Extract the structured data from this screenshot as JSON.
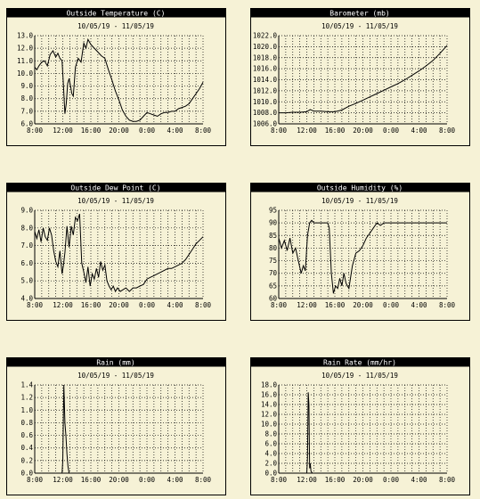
{
  "date_range": "10/05/19 - 11/05/19",
  "colors": {
    "background": "#f6f2d6",
    "ink": "#000000"
  },
  "chart_data": [
    {
      "id": "outside-temperature",
      "type": "line",
      "title": "Outside Temperature (C)",
      "subtitle": "10/05/19 - 11/05/19",
      "x_ticks": [
        "8:00",
        "12:00",
        "16:00",
        "20:00",
        "0:00",
        "4:00",
        "8:00"
      ],
      "y_ticks": [
        "6.0",
        "7.0",
        "8.0",
        "9.0",
        "10.0",
        "11.0",
        "12.0",
        "13.0"
      ],
      "ylim": [
        6,
        13
      ],
      "grid": true,
      "series": [
        {
          "x": [
            0,
            0.3,
            0.6,
            1,
            1.4,
            1.8,
            2.2,
            2.6,
            3,
            3.3,
            3.6,
            3.9,
            4.1,
            4.3,
            4.5,
            4.7,
            4.9,
            5.1,
            5.3,
            5.5,
            5.8,
            6.2,
            6.6,
            7,
            7.3,
            7.6,
            8,
            8.5,
            9,
            9.5,
            10,
            10.5,
            11,
            11.5,
            12,
            12.5,
            13,
            13.5,
            14,
            14.5,
            15,
            15.5,
            16,
            16.5,
            17,
            17.5,
            18,
            18.5,
            19,
            19.5,
            20,
            20.5,
            21,
            21.5,
            22,
            22.5,
            23,
            23.5,
            24
          ],
          "y": [
            10.5,
            10.3,
            10.6,
            10.9,
            11.0,
            10.6,
            11.5,
            11.8,
            11.3,
            11.6,
            11.2,
            11.0,
            9.0,
            6.8,
            7.6,
            9.2,
            9.6,
            9.0,
            8.4,
            8.2,
            10.5,
            11.2,
            10.9,
            12.4,
            12.0,
            12.7,
            12.3,
            12.0,
            11.7,
            11.4,
            11.2,
            10.3,
            9.5,
            8.6,
            7.9,
            7.1,
            6.6,
            6.3,
            6.2,
            6.2,
            6.3,
            6.6,
            6.9,
            6.8,
            6.7,
            6.6,
            6.8,
            6.9,
            6.9,
            7.0,
            7.0,
            7.2,
            7.3,
            7.4,
            7.6,
            8.0,
            8.4,
            8.8,
            9.3
          ]
        }
      ]
    },
    {
      "id": "barometer",
      "type": "line",
      "title": "Barometer (mb)",
      "subtitle": "10/05/19 - 11/05/19",
      "x_ticks": [
        "8:00",
        "12:00",
        "16:00",
        "20:00",
        "0:00",
        "4:00",
        "8:00"
      ],
      "y_ticks": [
        "1006.0",
        "1008.0",
        "1010.0",
        "1012.0",
        "1014.0",
        "1016.0",
        "1018.0",
        "1020.0",
        "1022.0"
      ],
      "ylim": [
        1006,
        1022
      ],
      "grid": true,
      "series": [
        {
          "x": [
            0,
            1,
            2,
            3,
            4,
            4.5,
            5,
            6,
            7,
            8,
            9,
            10,
            11,
            12,
            13,
            14,
            15,
            16,
            17,
            18,
            19,
            20,
            21,
            22,
            23,
            24
          ],
          "y": [
            1008.0,
            1008.0,
            1008.1,
            1008.1,
            1008.2,
            1008.6,
            1008.3,
            1008.3,
            1008.2,
            1008.2,
            1008.5,
            1009.2,
            1009.7,
            1010.3,
            1010.9,
            1011.5,
            1012.1,
            1012.7,
            1013.3,
            1014.0,
            1014.8,
            1015.6,
            1016.5,
            1017.5,
            1018.8,
            1020.2
          ]
        }
      ]
    },
    {
      "id": "outside-dew-point",
      "type": "line",
      "title": "Outside Dew Point (C)",
      "subtitle": "10/05/19 - 11/05/19",
      "x_ticks": [
        "8:00",
        "12:00",
        "16:00",
        "20:00",
        "0:00",
        "4:00",
        "8:00"
      ],
      "y_ticks": [
        "4.0",
        "5.0",
        "6.0",
        "7.0",
        "8.0",
        "9.0"
      ],
      "ylim": [
        4,
        9
      ],
      "grid": true,
      "series": [
        {
          "x": [
            0,
            0.3,
            0.6,
            0.9,
            1.2,
            1.5,
            1.8,
            2.1,
            2.4,
            2.7,
            3,
            3.3,
            3.6,
            3.9,
            4.1,
            4.3,
            4.6,
            4.9,
            5.2,
            5.5,
            5.8,
            6.1,
            6.4,
            6.7,
            7,
            7.3,
            7.6,
            7.9,
            8.2,
            8.5,
            8.8,
            9.1,
            9.4,
            9.7,
            10,
            10.3,
            10.6,
            10.9,
            11.2,
            11.5,
            11.8,
            12.2,
            12.6,
            13,
            13.5,
            14,
            14.5,
            15,
            15.5,
            16,
            16.5,
            17,
            17.5,
            18,
            18.5,
            19,
            19.5,
            20,
            20.5,
            21,
            21.5,
            22,
            22.5,
            23,
            23.5,
            24
          ],
          "y": [
            7.8,
            7.4,
            7.9,
            7.2,
            8.0,
            7.5,
            7.3,
            8.0,
            7.6,
            6.7,
            6.1,
            5.8,
            6.7,
            5.4,
            5.9,
            6.6,
            8.1,
            6.9,
            8.1,
            7.6,
            8.6,
            8.4,
            8.8,
            6.0,
            5.5,
            4.9,
            5.8,
            4.7,
            5.4,
            5.1,
            5.7,
            5.2,
            6.1,
            5.6,
            5.9,
            5.0,
            4.7,
            4.5,
            4.7,
            4.4,
            4.6,
            4.4,
            4.5,
            4.6,
            4.4,
            4.6,
            4.6,
            4.7,
            4.8,
            5.1,
            5.2,
            5.3,
            5.4,
            5.5,
            5.6,
            5.7,
            5.7,
            5.8,
            5.9,
            6.0,
            6.2,
            6.5,
            6.8,
            7.1,
            7.3,
            7.5
          ]
        }
      ]
    },
    {
      "id": "outside-humidity",
      "type": "line",
      "title": "Outside Humidity (%)",
      "subtitle": "10/05/19 - 11/05/19",
      "x_ticks": [
        "8:00",
        "12:00",
        "16:00",
        "20:00",
        "0:00",
        "4:00",
        "8:00"
      ],
      "y_ticks": [
        "60",
        "65",
        "70",
        "75",
        "80",
        "85",
        "90",
        "95"
      ],
      "ylim": [
        60,
        95
      ],
      "grid": true,
      "series": [
        {
          "x": [
            0,
            0.4,
            0.8,
            1.2,
            1.6,
            2,
            2.4,
            2.8,
            3.2,
            3.5,
            3.8,
            4.1,
            4.4,
            4.7,
            5,
            6,
            7,
            7.2,
            7.5,
            7.8,
            8.1,
            8.4,
            8.7,
            9,
            9.3,
            9.6,
            10,
            10.5,
            11,
            11.5,
            12,
            12.5,
            13,
            13.5,
            14,
            14.5,
            15,
            16,
            17,
            18,
            19,
            20,
            21,
            22,
            23,
            24
          ],
          "y": [
            84,
            80,
            83,
            79,
            84,
            78,
            80,
            75,
            70,
            73,
            71,
            85,
            90,
            91,
            90,
            90,
            90,
            88,
            70,
            62,
            65,
            64,
            68,
            65,
            70,
            66,
            64,
            73,
            78,
            79,
            81,
            84,
            86,
            88,
            90,
            89,
            90,
            90,
            90,
            90,
            90,
            90,
            90,
            90,
            90,
            90
          ]
        }
      ]
    },
    {
      "id": "rain",
      "type": "line",
      "title": "Rain (mm)",
      "subtitle": "10/05/19 - 11/05/19",
      "x_ticks": [
        "8:00",
        "12:00",
        "16:00",
        "20:00",
        "0:00",
        "4:00",
        "8:00"
      ],
      "y_ticks": [
        "0.0",
        "0.2",
        "0.4",
        "0.6",
        "0.8",
        "1.0",
        "1.2",
        "1.4"
      ],
      "ylim": [
        0,
        1.4
      ],
      "grid": true,
      "series": [
        {
          "x": [
            0,
            3.9,
            4.0,
            4.15,
            4.3,
            4.45,
            4.6,
            4.75,
            4.9,
            24
          ],
          "y": [
            0,
            0,
            0.2,
            1.4,
            0.8,
            0.6,
            0.3,
            0.1,
            0,
            0
          ]
        }
      ]
    },
    {
      "id": "rain-rate",
      "type": "line",
      "title": "Rain Rate (mm/hr)",
      "subtitle": "10/05/19 - 11/05/19",
      "x_ticks": [
        "8:00",
        "12:00",
        "16:00",
        "20:00",
        "0:00",
        "4:00",
        "8:00"
      ],
      "y_ticks": [
        "0.0",
        "2.0",
        "4.0",
        "6.0",
        "8.0",
        "10.0",
        "12.0",
        "14.0",
        "16.0",
        "18.0"
      ],
      "ylim": [
        0,
        18
      ],
      "grid": true,
      "series": [
        {
          "x": [
            0,
            4.0,
            4.1,
            4.2,
            4.3,
            4.4,
            4.5,
            4.6,
            4.8,
            24
          ],
          "y": [
            0,
            0,
            3.0,
            16.5,
            14.0,
            1.0,
            2.0,
            0.4,
            0,
            0
          ]
        }
      ]
    }
  ]
}
